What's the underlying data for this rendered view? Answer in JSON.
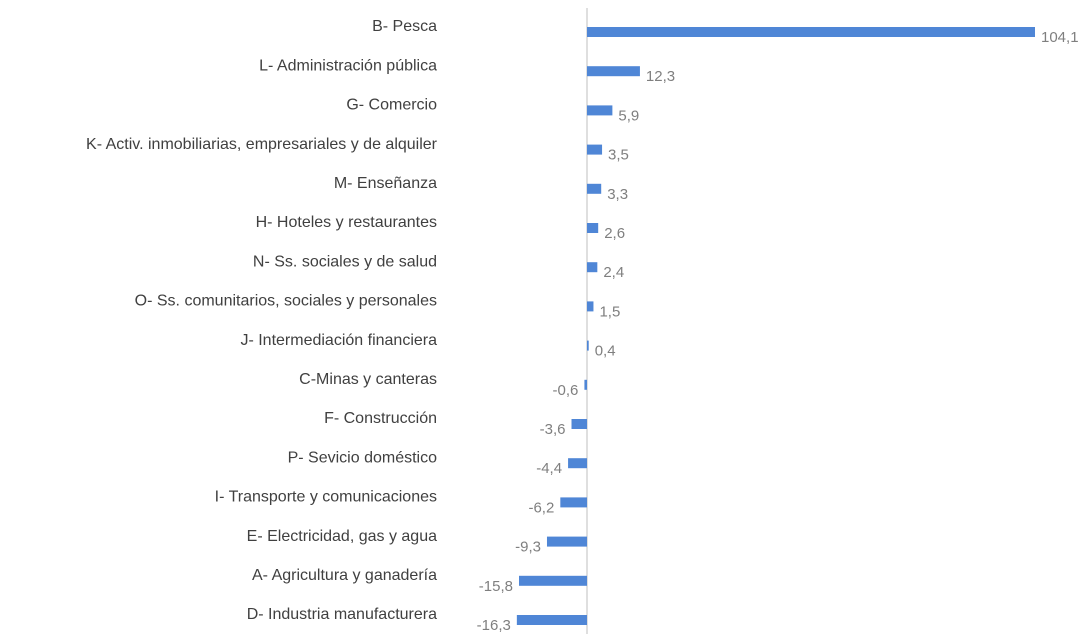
{
  "chart_data": {
    "type": "barh",
    "categories": [
      "B- Pesca",
      "L- Administración pública",
      "G- Comercio",
      "K- Activ. inmobiliarias, empresariales y de alquiler",
      "M- Enseñanza",
      "H- Hoteles y restaurantes",
      "N- Ss. sociales y de salud",
      "O- Ss. comunitarios, sociales y personales",
      "J- Intermediación financiera",
      "C-Minas y canteras",
      "F- Construcción",
      "P- Sevicio doméstico",
      "I- Transporte y comunicaciones",
      "E- Electricidad, gas y agua",
      "A- Agricultura y ganadería",
      "D- Industria manufacturera"
    ],
    "values": [
      104.1,
      12.3,
      5.9,
      3.5,
      3.3,
      2.6,
      2.4,
      1.5,
      0.4,
      -0.6,
      -3.6,
      -4.4,
      -6.2,
      -9.3,
      -15.8,
      -16.3
    ],
    "value_labels": [
      "104,1",
      "12,3",
      "5,9",
      "3,5",
      "3,3",
      "2,6",
      "2,4",
      "1,5",
      "0,4",
      "-0,6",
      "-3,6",
      "-4,4",
      "-6,2",
      "-9,3",
      "-15,8",
      "-16,3"
    ],
    "color": "#4f86d6"
  }
}
